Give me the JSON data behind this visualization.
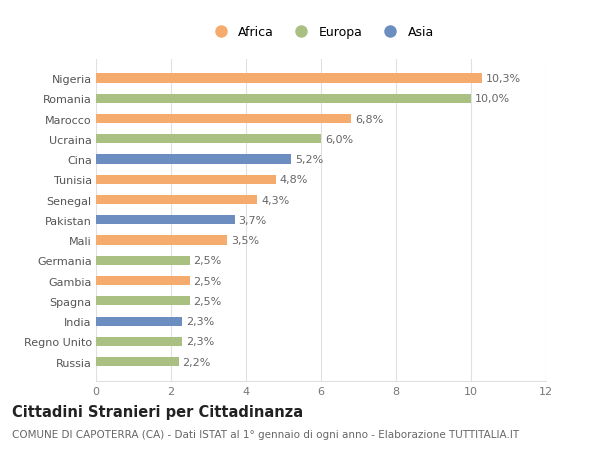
{
  "categories": [
    "Russia",
    "Regno Unito",
    "India",
    "Spagna",
    "Gambia",
    "Germania",
    "Mali",
    "Pakistan",
    "Senegal",
    "Tunisia",
    "Cina",
    "Ucraina",
    "Marocco",
    "Romania",
    "Nigeria"
  ],
  "values": [
    2.2,
    2.3,
    2.3,
    2.5,
    2.5,
    2.5,
    3.5,
    3.7,
    4.3,
    4.8,
    5.2,
    6.0,
    6.8,
    10.0,
    10.3
  ],
  "labels": [
    "2,2%",
    "2,3%",
    "2,3%",
    "2,5%",
    "2,5%",
    "2,5%",
    "3,5%",
    "3,7%",
    "4,3%",
    "4,8%",
    "5,2%",
    "6,0%",
    "6,8%",
    "10,0%",
    "10,3%"
  ],
  "continents": [
    "Europa",
    "Europa",
    "Asia",
    "Europa",
    "Africa",
    "Europa",
    "Africa",
    "Asia",
    "Africa",
    "Africa",
    "Asia",
    "Europa",
    "Africa",
    "Europa",
    "Africa"
  ],
  "colors": {
    "Africa": "#F5AA6E",
    "Europa": "#AABF82",
    "Asia": "#6B8DBF"
  },
  "xlim": [
    0,
    12
  ],
  "xticks": [
    0,
    2,
    4,
    6,
    8,
    10,
    12
  ],
  "title": "Cittadini Stranieri per Cittadinanza",
  "subtitle": "COMUNE DI CAPOTERRA (CA) - Dati ISTAT al 1° gennaio di ogni anno - Elaborazione TUTTITALIA.IT",
  "background_color": "#ffffff",
  "grid_color": "#e0e0e0",
  "bar_height": 0.45,
  "label_fontsize": 8.0,
  "tick_fontsize": 8.0,
  "title_fontsize": 10.5,
  "subtitle_fontsize": 7.5,
  "legend_fontsize": 9.0
}
